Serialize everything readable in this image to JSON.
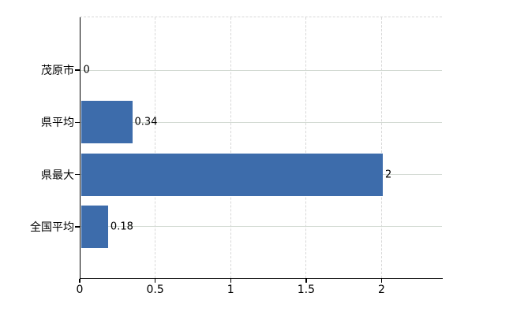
{
  "chart_data": {
    "type": "bar",
    "orientation": "horizontal",
    "title": "",
    "xlabel": "",
    "ylabel": "",
    "categories": [
      "茂原市",
      "県平均",
      "県最大",
      "全国平均"
    ],
    "values": [
      0,
      0.34,
      2,
      0.18
    ],
    "value_labels": [
      "0",
      "0.34",
      "2",
      "0.18"
    ],
    "x_ticks": [
      0,
      0.5,
      1,
      1.5,
      2
    ],
    "x_tick_labels": [
      "0",
      "0.5",
      "1",
      "1.5",
      "2"
    ],
    "xlim": [
      0,
      2.4
    ],
    "grid": true,
    "legend": false,
    "colors": {
      "bar": "#3d6cab",
      "axis": "#000000",
      "h_gridline": "#d2d9d2",
      "v_gridline": "#d8d8d8",
      "plot_border_dashed": "#d8d8d8",
      "text": "#000000",
      "background": "#ffffff"
    }
  }
}
